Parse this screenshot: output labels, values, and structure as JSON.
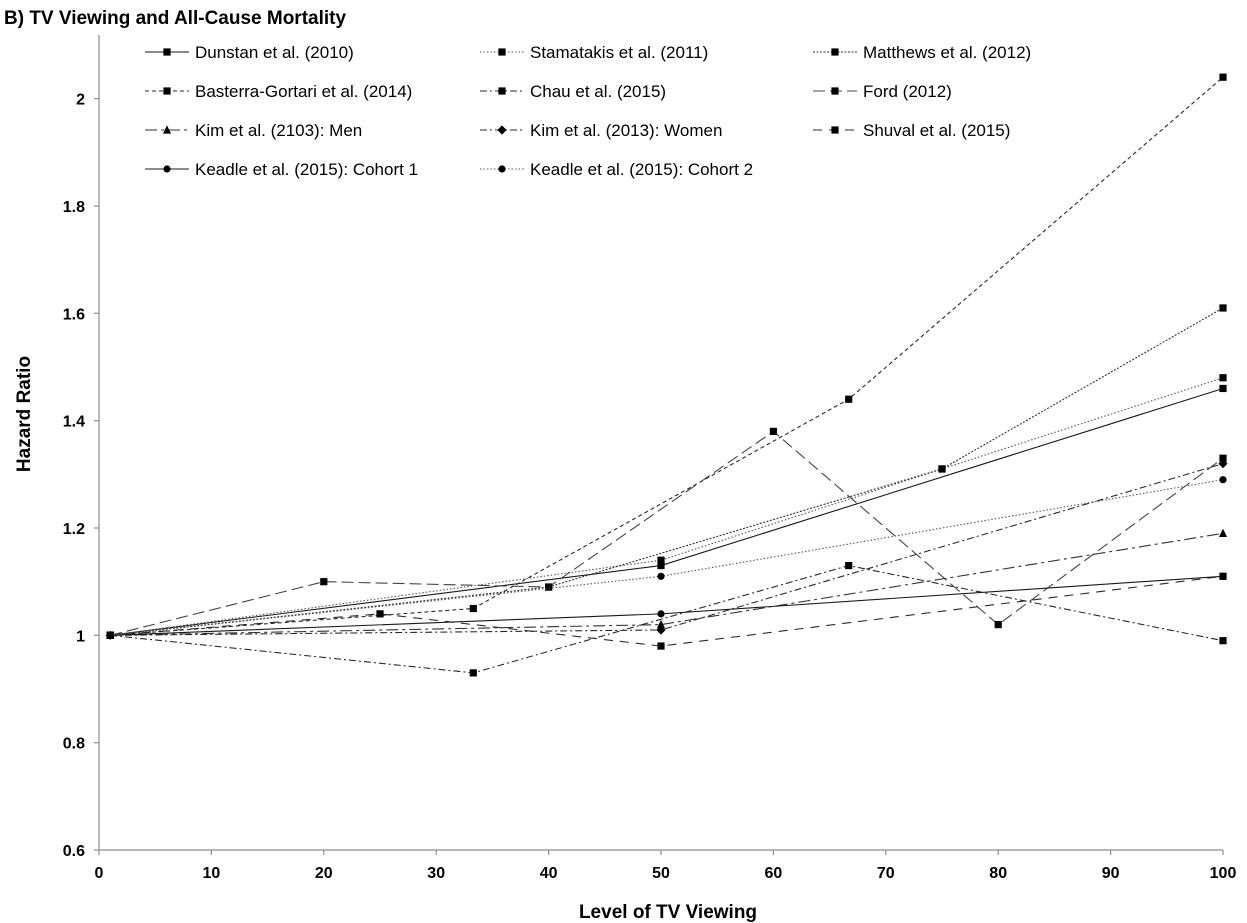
{
  "chart_data": {
    "type": "line",
    "title": "B) TV Viewing and All-Cause Mortality",
    "xlabel": "Level of TV Viewing",
    "ylabel": "Hazard Ratio",
    "xlim": [
      0,
      100
    ],
    "ylim": [
      0.6,
      2.1
    ],
    "xticks": [
      0,
      10,
      20,
      30,
      40,
      50,
      60,
      70,
      80,
      90,
      100
    ],
    "yticks": [
      0.6,
      0.8,
      1,
      1.2,
      1.4,
      1.6,
      1.8,
      2
    ],
    "ytick_labels": [
      "0.6",
      "0.8",
      "1",
      "1.2",
      "1.4",
      "1.6",
      "1.8",
      "2"
    ],
    "grid": false,
    "legend_position": "top",
    "series": [
      {
        "name": "Dunstan et al. (2010)",
        "dash": "solid",
        "marker": "square",
        "x": [
          1,
          50,
          100
        ],
        "y": [
          1.0,
          1.13,
          1.46
        ]
      },
      {
        "name": "Stamatakis et al. (2011)",
        "dash": "dot",
        "marker": "square",
        "x": [
          1,
          50,
          75,
          100
        ],
        "y": [
          1.0,
          1.14,
          1.31,
          1.48
        ]
      },
      {
        "name": "Matthews et al. (2012)",
        "dash": "densedot",
        "marker": "square",
        "x": [
          1,
          40,
          75,
          100
        ],
        "y": [
          1.0,
          1.09,
          1.31,
          1.61
        ]
      },
      {
        "name": "Basterra-Gortari et al. (2014)",
        "dash": "shortdash",
        "marker": "square",
        "x": [
          1,
          33.3,
          66.7,
          100
        ],
        "y": [
          1.0,
          1.05,
          1.44,
          2.04
        ]
      },
      {
        "name": "Chau et al. (2015)",
        "dash": "dashdot",
        "marker": "square",
        "x": [
          1,
          33.3,
          66.7,
          100
        ],
        "y": [
          1.0,
          0.93,
          1.13,
          0.99
        ]
      },
      {
        "name": "Ford (2012)",
        "dash": "longdash",
        "marker": "square",
        "x": [
          1,
          20,
          40,
          60,
          80,
          100
        ],
        "y": [
          1.0,
          1.1,
          1.09,
          1.38,
          1.02,
          1.33
        ]
      },
      {
        "name": "Kim et al. (2103): Men",
        "dash": "longdashdot",
        "marker": "triangle",
        "x": [
          1,
          50,
          100
        ],
        "y": [
          1.0,
          1.02,
          1.19
        ]
      },
      {
        "name": "Kim et al. (2013): Women",
        "dash": "dashdot",
        "marker": "diamond",
        "x": [
          1,
          50,
          100
        ],
        "y": [
          1.0,
          1.01,
          1.32
        ]
      },
      {
        "name": "Shuval et al. (2015)",
        "dash": "dashgap",
        "marker": "square",
        "x": [
          1,
          25,
          50,
          100
        ],
        "y": [
          1.0,
          1.04,
          0.98,
          1.11
        ]
      },
      {
        "name": "Keadle et al. (2015): Cohort 1",
        "dash": "solid",
        "marker": "circle",
        "x": [
          1,
          50,
          100
        ],
        "y": [
          1.0,
          1.04,
          1.11
        ]
      },
      {
        "name": "Keadle et al. (2015): Cohort 2",
        "dash": "dot",
        "marker": "circle",
        "x": [
          1,
          50,
          100
        ],
        "y": [
          1.0,
          1.11,
          1.29
        ]
      }
    ]
  }
}
